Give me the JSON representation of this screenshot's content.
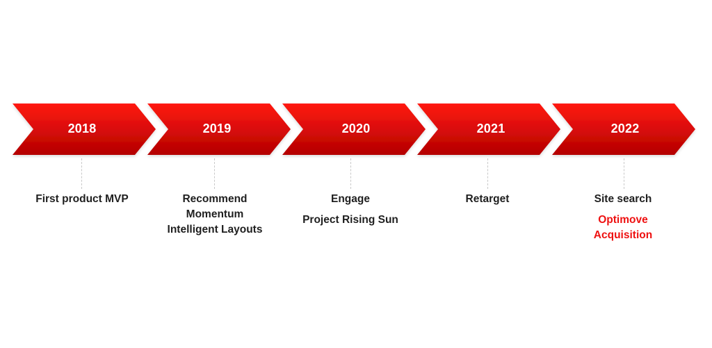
{
  "colors": {
    "chevron_top": "#ff1a12",
    "chevron_bottom": "#b30000",
    "text": "#1f1f1f",
    "highlight": "#ee1111",
    "connector": "#c8c8c8"
  },
  "timeline": [
    {
      "year": "2018",
      "items": [
        "First product MVP"
      ],
      "highlights": []
    },
    {
      "year": "2019",
      "items": [
        "Recommend",
        "Momentum",
        "Intelligent Layouts"
      ],
      "highlights": []
    },
    {
      "year": "2020",
      "items": [
        "Engage",
        "Project Rising Sun"
      ],
      "highlights": []
    },
    {
      "year": "2021",
      "items": [
        "Retarget"
      ],
      "highlights": []
    },
    {
      "year": "2022",
      "items": [
        "Site search"
      ],
      "highlights": [
        "Optimove",
        "Acquisition"
      ]
    }
  ]
}
